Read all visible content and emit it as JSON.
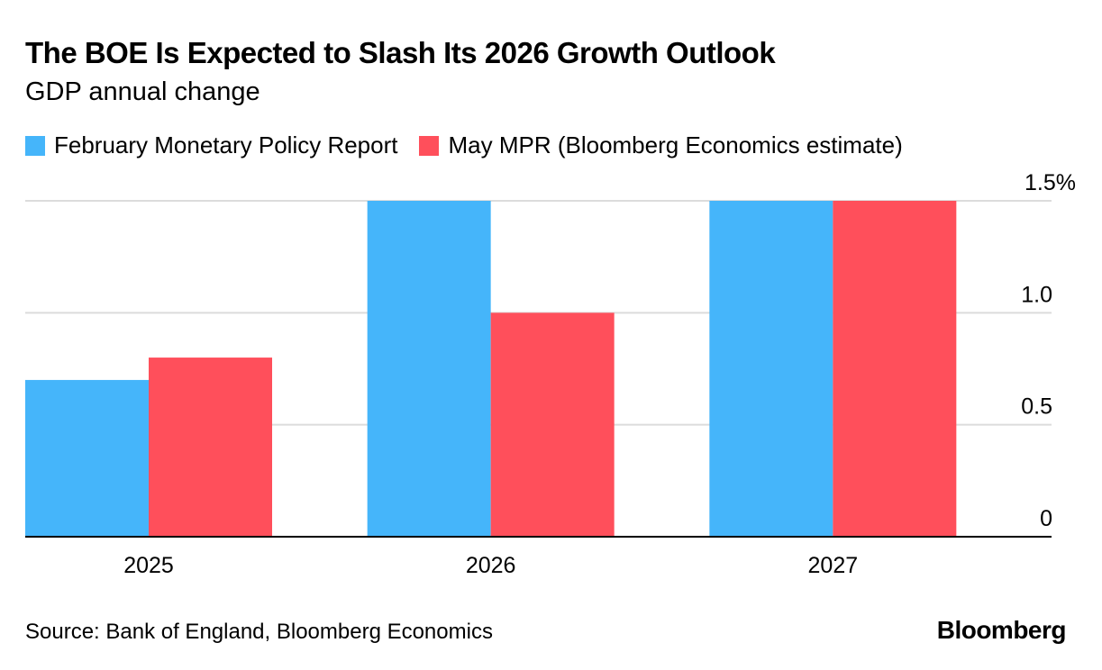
{
  "chart_data": {
    "type": "bar",
    "title": "The BOE Is Expected to Slash Its 2026 Growth Outlook",
    "subtitle": "GDP annual change",
    "categories": [
      "2025",
      "2026",
      "2027"
    ],
    "series": [
      {
        "name": "February Monetary Policy Report",
        "color": "#45b5fa",
        "values": [
          0.7,
          1.5,
          1.5
        ]
      },
      {
        "name": "May MPR (Bloomberg Economics estimate)",
        "color": "#ff4f5b",
        "values": [
          0.8,
          1.0,
          1.5
        ]
      }
    ],
    "yticks": [
      {
        "value": 0,
        "label": "0"
      },
      {
        "value": 0.5,
        "label": "0.5"
      },
      {
        "value": 1.0,
        "label": "1.0"
      },
      {
        "value": 1.5,
        "label": "1.5%"
      }
    ],
    "ylim": [
      0,
      1.5
    ],
    "xlabel": "",
    "ylabel": "",
    "grid": true,
    "legend": "top-left",
    "yaxis_position": "right"
  },
  "source": "Source: Bank of England, Bloomberg Economics",
  "brand": "Bloomberg"
}
